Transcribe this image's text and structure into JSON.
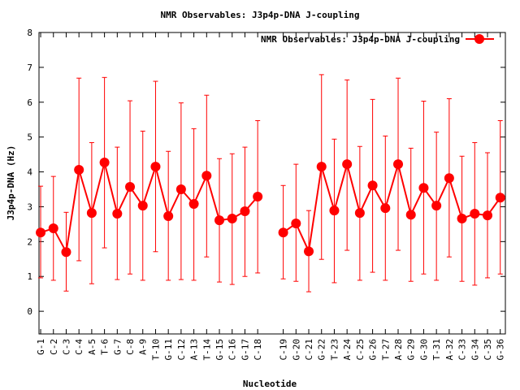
{
  "chart_data": {
    "type": "line",
    "title": "NMR Observables: J3p4p-DNA J-coupling",
    "xlabel": "Nucleotide",
    "ylabel": "J3p4p-DNA (Hz)",
    "ylim": [
      -0.65,
      8
    ],
    "yticks": [
      0,
      1,
      2,
      3,
      4,
      5,
      6,
      7,
      8
    ],
    "xlim": [
      0.87,
      37.4
    ],
    "grid": false,
    "legend": {
      "label": "NMR Observables: J3p4p-DNA J-coupling",
      "placement": "top-right"
    },
    "color": "#ff0000",
    "series": [
      {
        "name": "NMR Observables: J3p4p-DNA J-coupling",
        "points": [
          {
            "x": 1,
            "label": "G-1",
            "y": 2.26,
            "ylow": 0.96,
            "yhigh": 3.59
          },
          {
            "x": 2,
            "label": "C-2",
            "y": 2.38,
            "ylow": 0.89,
            "yhigh": 3.87
          },
          {
            "x": 3,
            "label": "C-3",
            "y": 1.7,
            "ylow": 0.58,
            "yhigh": 2.84
          },
          {
            "x": 4,
            "label": "C-4",
            "y": 4.06,
            "ylow": 1.45,
            "yhigh": 6.69
          },
          {
            "x": 5,
            "label": "A-5",
            "y": 2.82,
            "ylow": 0.79,
            "yhigh": 4.84
          },
          {
            "x": 6,
            "label": "T-6",
            "y": 4.27,
            "ylow": 1.82,
            "yhigh": 6.71
          },
          {
            "x": 7,
            "label": "G-7",
            "y": 2.8,
            "ylow": 0.91,
            "yhigh": 4.71
          },
          {
            "x": 8,
            "label": "C-8",
            "y": 3.57,
            "ylow": 1.07,
            "yhigh": 6.04
          },
          {
            "x": 9,
            "label": "A-9",
            "y": 3.03,
            "ylow": 0.89,
            "yhigh": 5.17
          },
          {
            "x": 10,
            "label": "T-10",
            "y": 4.15,
            "ylow": 1.71,
            "yhigh": 6.6
          },
          {
            "x": 11,
            "label": "G-11",
            "y": 2.73,
            "ylow": 0.89,
            "yhigh": 4.59
          },
          {
            "x": 12,
            "label": "C-12",
            "y": 3.5,
            "ylow": 0.91,
            "yhigh": 5.98
          },
          {
            "x": 13,
            "label": "A-13",
            "y": 3.08,
            "ylow": 0.89,
            "yhigh": 5.24
          },
          {
            "x": 14,
            "label": "T-14",
            "y": 3.89,
            "ylow": 1.56,
            "yhigh": 6.2
          },
          {
            "x": 15,
            "label": "G-15",
            "y": 2.61,
            "ylow": 0.84,
            "yhigh": 4.38
          },
          {
            "x": 16,
            "label": "C-16",
            "y": 2.66,
            "ylow": 0.77,
            "yhigh": 4.52
          },
          {
            "x": 17,
            "label": "G-17",
            "y": 2.87,
            "ylow": 1.0,
            "yhigh": 4.71
          },
          {
            "x": 18,
            "label": "C-18",
            "y": 3.29,
            "ylow": 1.1,
            "yhigh": 5.47
          },
          {
            "x": 20,
            "label": "C-19",
            "y": 2.26,
            "ylow": 0.93,
            "yhigh": 3.61
          },
          {
            "x": 21,
            "label": "G-20",
            "y": 2.52,
            "ylow": 0.86,
            "yhigh": 4.22
          },
          {
            "x": 22,
            "label": "C-21",
            "y": 1.72,
            "ylow": 0.56,
            "yhigh": 2.89
          },
          {
            "x": 23,
            "label": "G-22",
            "y": 4.15,
            "ylow": 1.49,
            "yhigh": 6.79
          },
          {
            "x": 24,
            "label": "T-23",
            "y": 2.89,
            "ylow": 0.82,
            "yhigh": 4.94
          },
          {
            "x": 25,
            "label": "A-24",
            "y": 4.22,
            "ylow": 1.75,
            "yhigh": 6.64
          },
          {
            "x": 26,
            "label": "C-25",
            "y": 2.82,
            "ylow": 0.89,
            "yhigh": 4.73
          },
          {
            "x": 27,
            "label": "G-26",
            "y": 3.61,
            "ylow": 1.12,
            "yhigh": 6.08
          },
          {
            "x": 28,
            "label": "T-27",
            "y": 2.96,
            "ylow": 0.89,
            "yhigh": 5.03
          },
          {
            "x": 29,
            "label": "A-28",
            "y": 4.22,
            "ylow": 1.75,
            "yhigh": 6.69
          },
          {
            "x": 30,
            "label": "G-29",
            "y": 2.77,
            "ylow": 0.86,
            "yhigh": 4.68
          },
          {
            "x": 31,
            "label": "G-30",
            "y": 3.54,
            "ylow": 1.07,
            "yhigh": 6.03
          },
          {
            "x": 32,
            "label": "T-31",
            "y": 3.03,
            "ylow": 0.89,
            "yhigh": 5.14
          },
          {
            "x": 33,
            "label": "A-32",
            "y": 3.82,
            "ylow": 1.56,
            "yhigh": 6.1
          },
          {
            "x": 34,
            "label": "C-33",
            "y": 2.66,
            "ylow": 0.86,
            "yhigh": 4.45
          },
          {
            "x": 35,
            "label": "G-34",
            "y": 2.8,
            "ylow": 0.75,
            "yhigh": 4.84
          },
          {
            "x": 36,
            "label": "C-35",
            "y": 2.75,
            "ylow": 0.96,
            "yhigh": 4.55
          },
          {
            "x": 37,
            "label": "G-36",
            "y": 3.26,
            "ylow": 1.07,
            "yhigh": 5.47
          }
        ]
      }
    ]
  }
}
